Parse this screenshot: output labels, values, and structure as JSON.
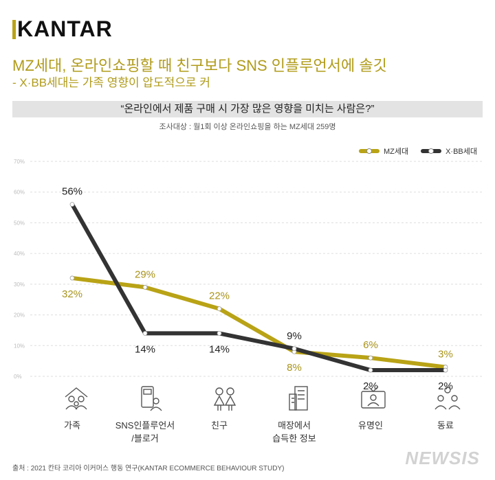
{
  "brand": "KANTAR",
  "header": {
    "title": "MZ세대, 온라인쇼핑할 때 친구보다 SNS 인플루언서에 솔깃",
    "subtitle": "- X·BB세대는 가족 영향이 압도적으로 커"
  },
  "question": "“온라인에서 제품 구매 시 가장 많은 영향을 미치는 사람은?”",
  "survey": "조사대상 : 월1회 이상 온라인쇼핑을 하는 MZ세대 259명",
  "source": "출처 : 2021 칸타 코리아 이커머스 행동 연구(KANTAR ECOMMERCE BEHAVIOUR STUDY)",
  "watermark": "NEWSIS",
  "colors": {
    "mz": "#b9a316",
    "xbb": "#333333",
    "grid": "#dddddd"
  },
  "icons": [
    "family-icon",
    "influencer-phone-icon",
    "friends-icon",
    "store-icon",
    "tv-celebrity-icon",
    "coworkers-icon"
  ],
  "chart_data": {
    "type": "line",
    "title": "“온라인에서 제품 구매 시 가장 많은 영향을 미치는 사람은?”",
    "categories": [
      "가족",
      "SNS인플루언서\n/블로거",
      "친구",
      "매장에서\n습득한 정보",
      "유명인",
      "동료"
    ],
    "series": [
      {
        "name": "MZ세대",
        "values": [
          32,
          29,
          22,
          8,
          6,
          3
        ],
        "labels": [
          "32%",
          "29%",
          "22%",
          "8%",
          "6%",
          "3%"
        ]
      },
      {
        "name": "X·BB세대",
        "values": [
          56,
          14,
          14,
          9,
          2,
          2
        ],
        "labels": [
          "56%",
          "14%",
          "14%",
          "9%",
          "2%",
          "2%"
        ]
      }
    ],
    "ylim": [
      0,
      70
    ],
    "yticks": [
      0,
      10,
      20,
      30,
      40,
      50,
      60,
      70
    ],
    "ytick_labels": [
      "0%",
      "10%",
      "20%",
      "30%",
      "40%",
      "50%",
      "60%",
      "70%"
    ],
    "grid": true,
    "legend": "top-right"
  }
}
